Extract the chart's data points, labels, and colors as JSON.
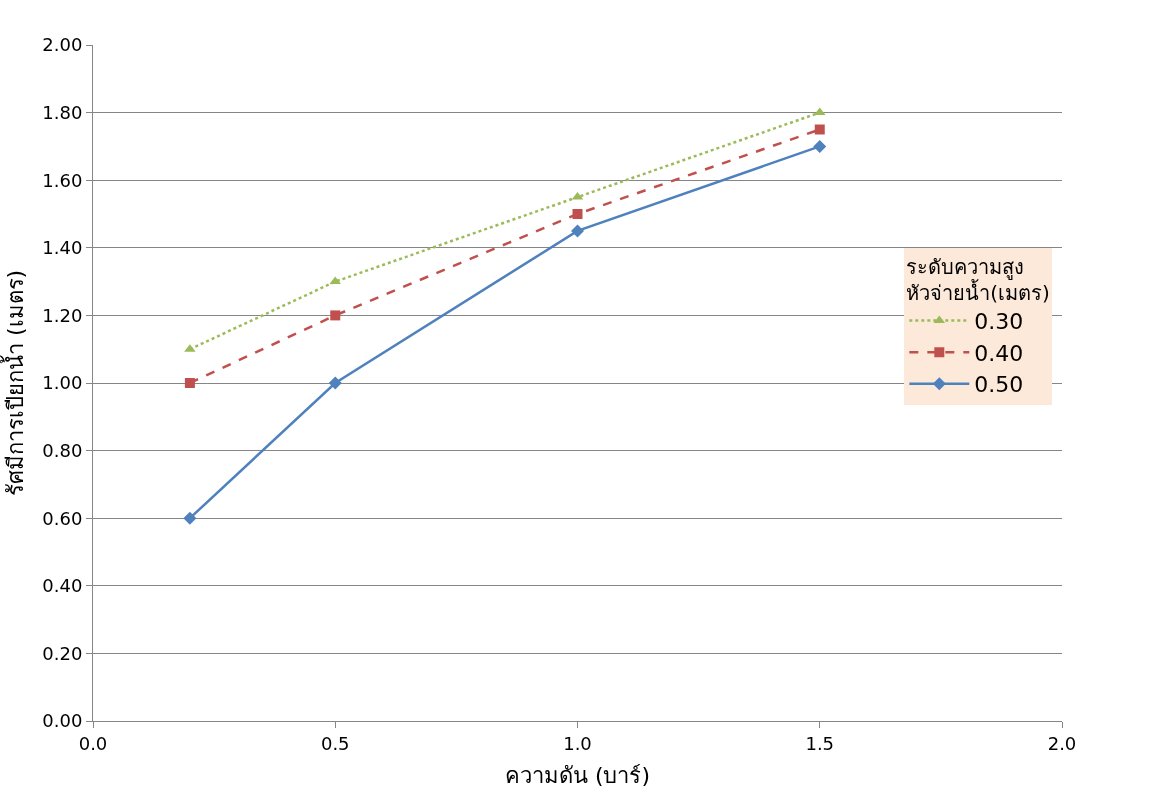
{
  "chart_data": {
    "type": "line",
    "xlabel": "ความดัน (บาร์)",
    "ylabel": "รัศมีการเปียกน้ำ (เมตร)",
    "legend_title": "ระดับความสูง\nหัวจ่ายน้ำ(เมตร)",
    "x": [
      0.2,
      0.5,
      1.0,
      1.5
    ],
    "series": [
      {
        "name": "0.30",
        "color": "#9bbb59",
        "marker": "triangle",
        "line_style": "dotted",
        "values": [
          1.1,
          1.3,
          1.55,
          1.8
        ]
      },
      {
        "name": "0.40",
        "color": "#c0504d",
        "marker": "square",
        "line_style": "dashed",
        "values": [
          1.0,
          1.2,
          1.5,
          1.75
        ]
      },
      {
        "name": "0.50",
        "color": "#4f81bd",
        "marker": "diamond",
        "line_style": "solid",
        "values": [
          0.6,
          1.0,
          1.45,
          1.7
        ]
      }
    ],
    "xlim": [
      0.0,
      2.0
    ],
    "xticks": [
      {
        "value": 0.0,
        "label": "0.0"
      },
      0.5,
      {
        "value": 1.0,
        "label": "1.0"
      },
      1.5,
      {
        "value": 2.0,
        "label": "2.0"
      }
    ],
    "ylim": [
      0.0,
      2.0
    ],
    "yticks": [
      {
        "value": 0,
        "label": "0.00"
      },
      {
        "value": 0.2,
        "label": "0.20"
      },
      {
        "value": 0.4,
        "label": "0.40"
      },
      {
        "value": 0.6,
        "label": "0.60"
      },
      {
        "value": 0.8,
        "label": "0.80"
      },
      {
        "value": 1.0,
        "label": "1.00"
      },
      {
        "value": 1.2,
        "label": "1.20"
      },
      {
        "value": 1.4,
        "label": "1.40"
      },
      {
        "value": 1.6,
        "label": "1.60"
      },
      {
        "value": 1.8,
        "label": "1.80"
      },
      {
        "value": 2.0,
        "label": "2.00"
      }
    ],
    "grid": "y",
    "legend": "right"
  }
}
